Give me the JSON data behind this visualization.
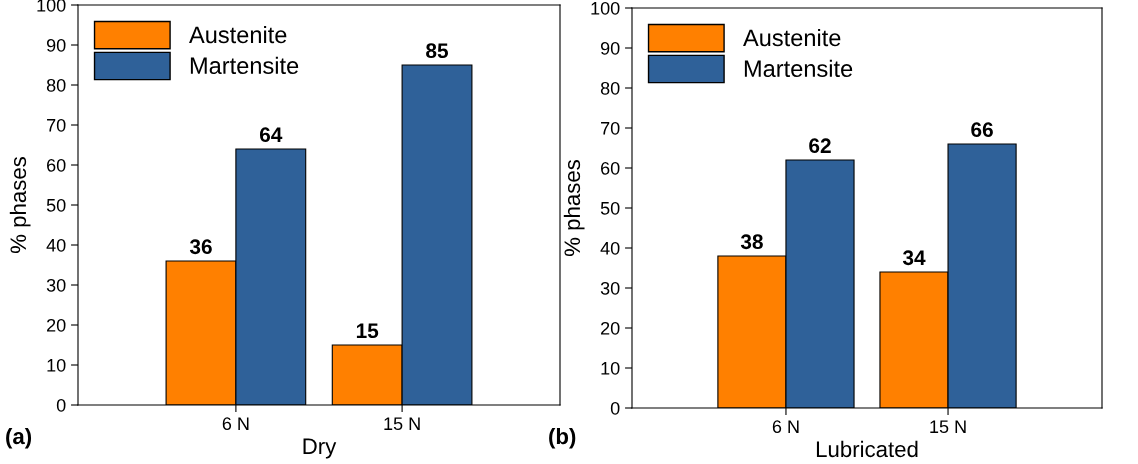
{
  "chart_data": [
    {
      "type": "bar",
      "xlabel": "Dry",
      "ylabel": "% phases",
      "categories": [
        "6 N",
        "15 N"
      ],
      "series": [
        {
          "name": "Austenite",
          "color": "#ff8000",
          "values": [
            36,
            15
          ]
        },
        {
          "name": "Martensite",
          "color": "#2f6199",
          "values": [
            64,
            85
          ]
        }
      ],
      "ylim": [
        0,
        100
      ],
      "yticks": [
        0,
        10,
        20,
        30,
        40,
        50,
        60,
        70,
        80,
        90,
        100
      ],
      "data_labels": true,
      "legend": "top left",
      "grid": false,
      "annotations": [
        "(a)"
      ]
    },
    {
      "type": "bar",
      "xlabel": "Lubricated",
      "ylabel": "% phases",
      "categories": [
        "6 N",
        "15 N"
      ],
      "series": [
        {
          "name": "Austenite",
          "color": "#ff8000",
          "values": [
            38,
            34
          ]
        },
        {
          "name": "Martensite",
          "color": "#2f6199",
          "values": [
            62,
            66
          ]
        }
      ],
      "ylim": [
        0,
        100
      ],
      "yticks": [
        0,
        10,
        20,
        30,
        40,
        50,
        60,
        70,
        80,
        90,
        100
      ],
      "data_labels": true,
      "legend": "top left",
      "grid": false,
      "annotations": [
        "(b)"
      ]
    }
  ]
}
